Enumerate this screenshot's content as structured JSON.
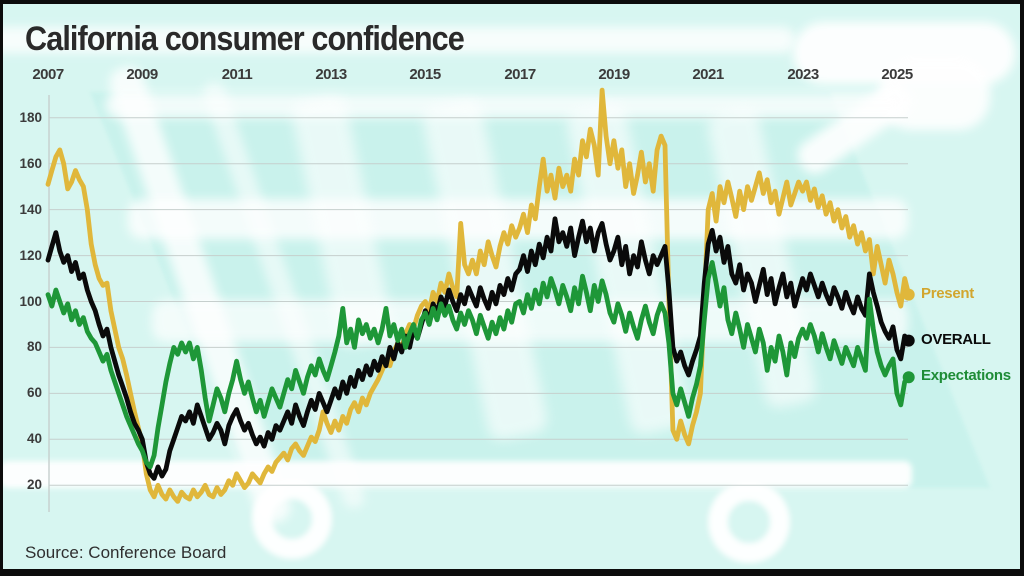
{
  "header": {
    "title": "California consumer confidence"
  },
  "footer": {
    "source": "Source: Conference Board"
  },
  "axes": {
    "x_ticks": [
      "2007",
      "2009",
      "2011",
      "2013",
      "2015",
      "2017",
      "2019",
      "2021",
      "2023",
      "2025"
    ],
    "y_ticks": [
      180,
      160,
      140,
      120,
      100,
      80,
      60,
      40,
      20
    ]
  },
  "legend": [
    {
      "label": "Present",
      "color": "#d2a62e"
    },
    {
      "label": "OVERALL",
      "color": "#0a0a0a"
    },
    {
      "label": "Expectations",
      "color": "#1e8c36"
    }
  ],
  "colors": {
    "background": "#d7f6f1",
    "gridline": "#c6cfcd",
    "present_line": "#e0b73b",
    "overall_line": "#0a0a0a",
    "expectations_line": "#1e9738"
  },
  "chart_data": {
    "type": "line",
    "title": "California consumer confidence",
    "source": "Source: Conference Board",
    "x_tick_labels": [
      "2007",
      "2009",
      "2011",
      "2013",
      "2015",
      "2017",
      "2019",
      "2021",
      "2023",
      "2025"
    ],
    "x_labels_position": "top",
    "x_monthly": {
      "start": "2007-01",
      "end": "2025-04",
      "step_months": 1
    },
    "y_ticks": [
      20,
      40,
      60,
      80,
      100,
      120,
      140,
      160,
      180
    ],
    "ylim": [
      8,
      193
    ],
    "grid": true,
    "legend_position": "right-of-line-ends",
    "series": [
      {
        "name": "Present",
        "color": "#e0b73b",
        "values": [
          151,
          157,
          163,
          166,
          160,
          149,
          152,
          157,
          153,
          150,
          140,
          125,
          116,
          110,
          107,
          108,
          96,
          88,
          80,
          75,
          68,
          60,
          52,
          45,
          38,
          25,
          18,
          15,
          20,
          16,
          14,
          18,
          15,
          13,
          17,
          15,
          14,
          18,
          15,
          17,
          20,
          16,
          15,
          19,
          16,
          18,
          22,
          20,
          25,
          22,
          19,
          21,
          25,
          23,
          21,
          25,
          28,
          26,
          30,
          32,
          34,
          31,
          36,
          38,
          35,
          33,
          37,
          41,
          39,
          44,
          52,
          47,
          43,
          48,
          44,
          50,
          47,
          53,
          56,
          52,
          58,
          55,
          60,
          63,
          66,
          70,
          74,
          72,
          78,
          82,
          80,
          86,
          90,
          88,
          94,
          98,
          100,
          96,
          104,
          100,
          108,
          104,
          112,
          106,
          102,
          134,
          116,
          112,
          118,
          112,
          122,
          116,
          126,
          120,
          115,
          124,
          130,
          125,
          133,
          128,
          132,
          138,
          130,
          142,
          136,
          150,
          162,
          148,
          155,
          145,
          158,
          150,
          155,
          148,
          162,
          155,
          170,
          163,
          175,
          168,
          155,
          192,
          172,
          160,
          170,
          158,
          166,
          150,
          160,
          147,
          155,
          165,
          152,
          160,
          148,
          166,
          172,
          168,
          100,
          44,
          40,
          48,
          42,
          38,
          46,
          52,
          60,
          100,
          140,
          147,
          135,
          150,
          143,
          152,
          145,
          137,
          148,
          140,
          150,
          144,
          150,
          156,
          147,
          153,
          143,
          148,
          138,
          145,
          152,
          142,
          147,
          152,
          148,
          152,
          144,
          149,
          141,
          146,
          138,
          143,
          135,
          140,
          132,
          137,
          128,
          133,
          125,
          130,
          122,
          127,
          112,
          124,
          116,
          108,
          118,
          112,
          104,
          98,
          110,
          103
        ]
      },
      {
        "name": "OVERALL",
        "color": "#0a0a0a",
        "values": [
          118,
          124,
          130,
          122,
          117,
          120,
          113,
          117,
          110,
          112,
          105,
          100,
          96,
          90,
          85,
          88,
          80,
          74,
          68,
          63,
          58,
          52,
          47,
          44,
          40,
          30,
          25,
          23,
          28,
          24,
          27,
          35,
          40,
          45,
          50,
          48,
          52,
          47,
          55,
          50,
          45,
          40,
          43,
          47,
          44,
          38,
          46,
          50,
          53,
          48,
          44,
          47,
          42,
          38,
          41,
          37,
          43,
          40,
          46,
          44,
          48,
          52,
          47,
          55,
          50,
          46,
          52,
          57,
          53,
          60,
          56,
          52,
          57,
          62,
          58,
          65,
          60,
          67,
          63,
          70,
          66,
          72,
          68,
          74,
          70,
          76,
          72,
          80,
          75,
          82,
          78,
          85,
          80,
          88,
          84,
          90,
          96,
          92,
          99,
          95,
          102,
          98,
          105,
          100,
          96,
          103,
          99,
          106,
          102,
          98,
          106,
          101,
          97,
          104,
          99,
          107,
          103,
          110,
          105,
          112,
          114,
          120,
          113,
          122,
          116,
          125,
          119,
          128,
          122,
          136,
          126,
          130,
          124,
          132,
          120,
          128,
          135,
          126,
          132,
          122,
          130,
          134,
          125,
          118,
          122,
          128,
          116,
          124,
          112,
          120,
          115,
          126,
          118,
          112,
          120,
          116,
          120,
          124,
          105,
          80,
          74,
          78,
          72,
          68,
          74,
          79,
          85,
          108,
          125,
          131,
          122,
          128,
          117,
          124,
          112,
          108,
          116,
          105,
          112,
          108,
          100,
          107,
          114,
          103,
          110,
          99,
          106,
          112,
          102,
          108,
          98,
          104,
          110,
          105,
          112,
          107,
          102,
          108,
          103,
          99,
          106,
          102,
          97,
          104,
          99,
          95,
          102,
          97,
          94,
          112,
          104,
          98,
          91,
          87,
          84,
          89,
          79,
          75,
          85,
          83
        ]
      },
      {
        "name": "Expectations",
        "color": "#1e9738",
        "values": [
          103,
          98,
          105,
          100,
          95,
          99,
          92,
          96,
          90,
          93,
          87,
          84,
          82,
          78,
          74,
          77,
          70,
          65,
          60,
          55,
          50,
          46,
          42,
          38,
          35,
          30,
          28,
          33,
          45,
          55,
          65,
          73,
          80,
          77,
          82,
          78,
          82,
          75,
          80,
          70,
          58,
          48,
          55,
          62,
          58,
          52,
          60,
          66,
          74,
          66,
          60,
          65,
          58,
          52,
          57,
          50,
          56,
          62,
          58,
          54,
          60,
          66,
          62,
          70,
          65,
          60,
          67,
          72,
          68,
          75,
          70,
          66,
          72,
          78,
          85,
          97,
          82,
          88,
          80,
          92,
          86,
          90,
          84,
          88,
          82,
          88,
          97,
          85,
          90,
          83,
          88,
          80,
          86,
          90,
          84,
          92,
          95,
          90,
          97,
          92,
          99,
          94,
          98,
          92,
          88,
          95,
          90,
          96,
          92,
          86,
          94,
          89,
          84,
          91,
          86,
          93,
          88,
          96,
          91,
          99,
          100,
          95,
          103,
          97,
          105,
          99,
          108,
          102,
          110,
          105,
          99,
          107,
          102,
          96,
          106,
          99,
          111,
          104,
          96,
          107,
          100,
          109,
          103,
          95,
          91,
          99,
          94,
          87,
          95,
          89,
          84,
          92,
          98,
          91,
          86,
          94,
          99,
          95,
          82,
          60,
          55,
          62,
          56,
          50,
          58,
          64,
          72,
          92,
          110,
          117,
          108,
          98,
          106,
          92,
          86,
          95,
          88,
          80,
          90,
          84,
          78,
          88,
          82,
          70,
          80,
          74,
          85,
          78,
          68,
          82,
          76,
          84,
          88,
          84,
          90,
          85,
          78,
          86,
          80,
          75,
          83,
          78,
          73,
          80,
          76,
          72,
          80,
          75,
          70,
          101,
          88,
          78,
          72,
          68,
          72,
          75,
          60,
          55,
          65,
          67
        ]
      }
    ]
  }
}
